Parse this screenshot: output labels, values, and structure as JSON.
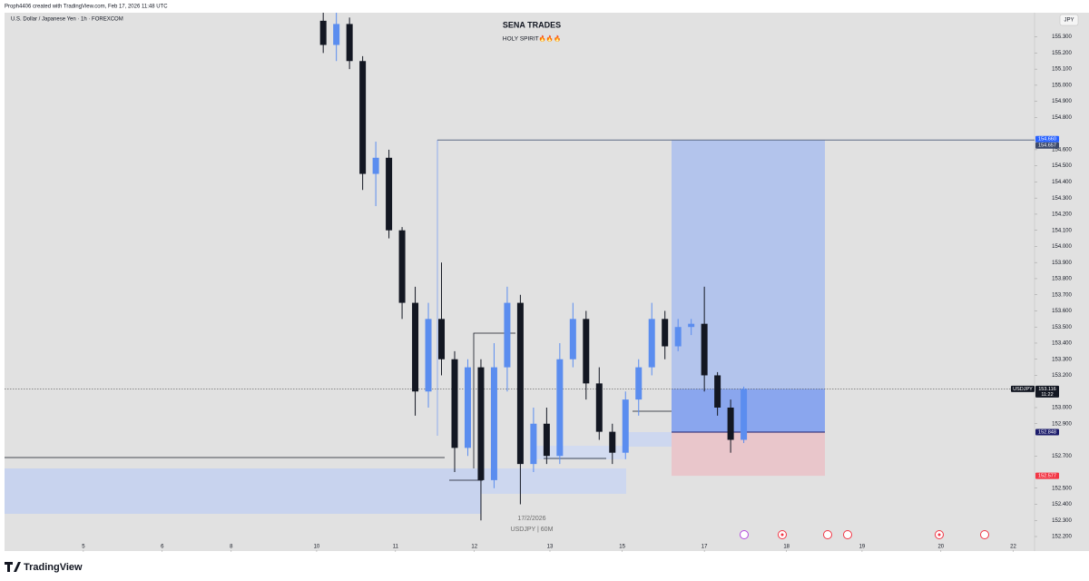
{
  "chart_data": {
    "type": "candlestick",
    "header": "Proph4406 created with TradingView.com, Feb 17, 2026 11:48 UTC",
    "symbol_info": "U.S. Dollar / Japanese Yen · 1h · FOREXCOM",
    "title": "SENA TRADES",
    "subtitle": "HOLY SPIRIT🔥🔥🔥",
    "watermark_date": "17/2/2026",
    "watermark_symbol": "USDJPY | 60M",
    "currency": "JPY",
    "brand": "TradingView",
    "up_color": "#5b8def",
    "down_color": "#131722",
    "x": [
      97,
      101,
      105,
      109,
      113,
      117,
      121,
      125,
      129,
      133,
      137,
      141,
      145,
      149,
      153,
      157,
      161,
      165,
      169,
      173,
      177,
      181,
      185,
      189,
      193,
      197,
      201,
      205,
      209,
      213,
      217,
      221,
      225
    ],
    "open": [
      155.4,
      155.25,
      155.38,
      155.15,
      154.45,
      154.55,
      154.1,
      153.65,
      153.1,
      153.55,
      153.3,
      152.75,
      153.25,
      152.55,
      153.25,
      153.65,
      152.65,
      152.9,
      152.7,
      153.3,
      153.55,
      153.15,
      152.85,
      152.72,
      153.05,
      153.25,
      153.55,
      153.38,
      153.5,
      153.52,
      153.2,
      153.0,
      152.8
    ],
    "high": [
      155.45,
      155.45,
      155.42,
      155.18,
      154.65,
      154.6,
      154.12,
      153.75,
      153.65,
      153.9,
      153.35,
      153.3,
      153.3,
      153.4,
      153.75,
      153.7,
      153.0,
      153.0,
      153.4,
      153.65,
      153.6,
      153.25,
      152.9,
      153.1,
      153.3,
      153.65,
      153.6,
      153.55,
      153.55,
      153.75,
      153.22,
      153.05,
      153.13
    ],
    "low": [
      155.2,
      155.15,
      155.1,
      154.35,
      154.25,
      154.05,
      153.55,
      152.95,
      153.0,
      153.2,
      152.6,
      152.7,
      152.3,
      152.5,
      153.1,
      152.4,
      152.6,
      152.65,
      152.65,
      153.25,
      153.05,
      152.8,
      152.65,
      152.68,
      152.95,
      153.2,
      153.3,
      153.35,
      153.45,
      153.1,
      152.95,
      152.72,
      152.78
    ],
    "close": [
      155.25,
      155.38,
      155.15,
      154.45,
      154.55,
      154.1,
      153.65,
      153.1,
      153.55,
      153.3,
      152.75,
      153.25,
      152.55,
      153.25,
      153.65,
      152.65,
      152.9,
      152.7,
      153.3,
      153.55,
      153.15,
      152.85,
      152.72,
      153.05,
      153.25,
      153.55,
      153.38,
      153.5,
      153.52,
      153.2,
      153.0,
      152.8,
      153.116
    ],
    "xlim": [
      0,
      313.5
    ],
    "xticks": [
      {
        "value": 24,
        "label": "5"
      },
      {
        "value": 48,
        "label": "6"
      },
      {
        "value": 69,
        "label": "8"
      },
      {
        "value": 95,
        "label": "10"
      },
      {
        "value": 119,
        "label": "11"
      },
      {
        "value": 143,
        "label": "12"
      },
      {
        "value": 166,
        "label": "13"
      },
      {
        "value": 188,
        "label": "15"
      },
      {
        "value": 213,
        "label": "17"
      },
      {
        "value": 238,
        "label": "18"
      },
      {
        "value": 261,
        "label": "19"
      },
      {
        "value": 285,
        "label": "20"
      },
      {
        "value": 307,
        "label": "22"
      }
    ],
    "ylim": [
      152.11,
      155.45
    ],
    "yticks": [
      {
        "value": 155.3,
        "label": "155.300"
      },
      {
        "value": 155.2,
        "label": "155.200"
      },
      {
        "value": 155.1,
        "label": "155.100"
      },
      {
        "value": 155.0,
        "label": "155.000"
      },
      {
        "value": 154.9,
        "label": "154.900"
      },
      {
        "value": 154.8,
        "label": "154.800"
      },
      {
        "value": 154.6,
        "label": "154.600"
      },
      {
        "value": 154.5,
        "label": "154.500"
      },
      {
        "value": 154.4,
        "label": "154.400"
      },
      {
        "value": 154.3,
        "label": "154.300"
      },
      {
        "value": 154.2,
        "label": "154.200"
      },
      {
        "value": 154.1,
        "label": "154.100"
      },
      {
        "value": 154.0,
        "label": "154.000"
      },
      {
        "value": 153.9,
        "label": "153.900"
      },
      {
        "value": 153.8,
        "label": "153.800"
      },
      {
        "value": 153.7,
        "label": "153.700"
      },
      {
        "value": 153.6,
        "label": "153.600"
      },
      {
        "value": 153.5,
        "label": "153.500"
      },
      {
        "value": 153.4,
        "label": "153.400"
      },
      {
        "value": 153.3,
        "label": "153.300"
      },
      {
        "value": 153.2,
        "label": "153.200"
      },
      {
        "value": 153.0,
        "label": "153.000"
      },
      {
        "value": 152.9,
        "label": "152.900"
      },
      {
        "value": 152.7,
        "label": "152.700"
      },
      {
        "value": 152.5,
        "label": "152.500"
      },
      {
        "value": 152.4,
        "label": "152.400"
      },
      {
        "value": 152.3,
        "label": "152.300"
      },
      {
        "value": 152.2,
        "label": "152.200"
      }
    ],
    "price_markers": [
      {
        "value": 154.66,
        "label": "154.660",
        "color": "#2962ff"
      },
      {
        "value": 154.657,
        "label": "154.657",
        "color": "#3d4a6b"
      },
      {
        "value": 153.116,
        "label": "153.116",
        "name": "USDJPY",
        "countdown": "11:22",
        "color": "#131722"
      },
      {
        "value": 152.848,
        "label": "152.848",
        "color": "#1c1c6b"
      },
      {
        "value": 152.577,
        "label": "152.577",
        "color": "#f23645"
      }
    ]
  }
}
